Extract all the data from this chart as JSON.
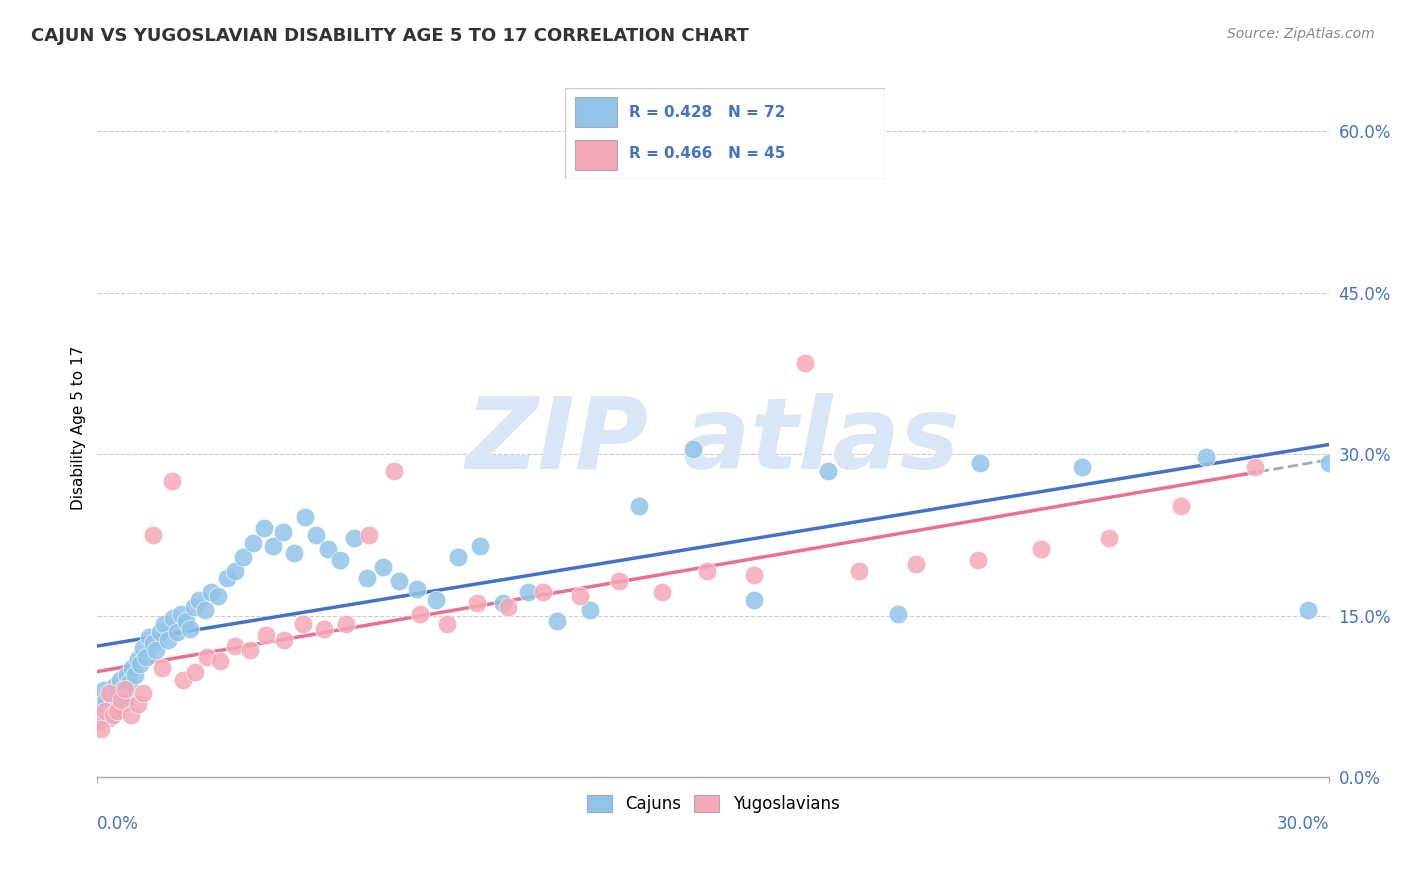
{
  "title": "CAJUN VS YUGOSLAVIAN DISABILITY AGE 5 TO 17 CORRELATION CHART",
  "source_text": "Source: ZipAtlas.com",
  "ylabel": "Disability Age 5 to 17",
  "yticks": [
    "0.0%",
    "15.0%",
    "30.0%",
    "45.0%",
    "60.0%"
  ],
  "ytick_vals": [
    0.0,
    15.0,
    30.0,
    45.0,
    60.0
  ],
  "xlim": [
    0.0,
    30.0
  ],
  "ylim": [
    0.0,
    65.0
  ],
  "cajun_R": 0.428,
  "cajun_N": 72,
  "yug_R": 0.466,
  "yug_N": 45,
  "cajun_color": "#91C4E8",
  "yug_color": "#F4A8B8",
  "cajun_line_color": "#4472C4",
  "yug_line_color": "#E87090",
  "watermark_color": "#D8E6F5",
  "cajun_x": [
    0.05,
    0.08,
    0.12,
    0.15,
    0.18,
    0.22,
    0.28,
    0.32,
    0.38,
    0.42,
    0.48,
    0.55,
    0.62,
    0.68,
    0.72,
    0.78,
    0.85,
    0.92,
    0.98,
    1.05,
    1.12,
    1.18,
    1.25,
    1.35,
    1.42,
    1.52,
    1.62,
    1.72,
    1.85,
    1.95,
    2.05,
    2.15,
    2.25,
    2.35,
    2.48,
    2.62,
    2.78,
    2.95,
    3.15,
    3.35,
    3.55,
    3.78,
    4.05,
    4.28,
    4.52,
    4.78,
    5.05,
    5.32,
    5.62,
    5.92,
    6.25,
    6.58,
    6.95,
    7.35,
    7.78,
    8.25,
    8.78,
    9.32,
    9.88,
    10.5,
    11.2,
    12.0,
    13.2,
    14.5,
    16.0,
    17.8,
    19.5,
    21.5,
    24.0,
    27.0,
    29.5,
    30.0
  ],
  "cajun_y": [
    7.0,
    6.2,
    5.8,
    8.1,
    6.5,
    7.2,
    5.5,
    7.8,
    6.8,
    8.5,
    7.5,
    9.0,
    8.2,
    7.0,
    9.5,
    8.8,
    10.2,
    9.5,
    11.0,
    10.5,
    12.0,
    11.2,
    13.0,
    12.5,
    11.8,
    13.5,
    14.2,
    12.8,
    14.8,
    13.5,
    15.2,
    14.5,
    13.8,
    15.8,
    16.5,
    15.5,
    17.2,
    16.8,
    18.5,
    19.2,
    20.5,
    21.8,
    23.2,
    21.5,
    22.8,
    20.8,
    24.2,
    22.5,
    21.2,
    20.2,
    22.2,
    18.5,
    19.5,
    18.2,
    17.5,
    16.5,
    20.5,
    21.5,
    16.2,
    17.2,
    14.5,
    15.5,
    25.2,
    30.5,
    16.5,
    28.5,
    15.2,
    29.2,
    28.8,
    29.8,
    15.5,
    29.2
  ],
  "yug_x": [
    0.05,
    0.1,
    0.18,
    0.28,
    0.38,
    0.48,
    0.58,
    0.68,
    0.82,
    0.98,
    1.12,
    1.35,
    1.58,
    1.82,
    2.08,
    2.38,
    2.68,
    3.0,
    3.35,
    3.72,
    4.12,
    4.55,
    5.02,
    5.52,
    6.05,
    6.62,
    7.22,
    7.85,
    8.52,
    9.25,
    10.0,
    10.85,
    11.75,
    12.72,
    13.75,
    14.85,
    16.0,
    17.25,
    18.55,
    19.95,
    21.45,
    23.0,
    24.65,
    26.4,
    28.2
  ],
  "yug_y": [
    5.2,
    4.5,
    6.2,
    7.8,
    5.8,
    6.2,
    7.2,
    8.2,
    5.8,
    6.8,
    7.8,
    22.5,
    10.2,
    27.5,
    9.0,
    9.8,
    11.2,
    10.8,
    12.2,
    11.8,
    13.2,
    12.8,
    14.2,
    13.8,
    14.2,
    22.5,
    28.5,
    15.2,
    14.2,
    16.2,
    15.8,
    17.2,
    16.8,
    18.2,
    17.2,
    19.2,
    18.8,
    38.5,
    19.2,
    19.8,
    20.2,
    21.2,
    22.2,
    25.2,
    28.8
  ]
}
